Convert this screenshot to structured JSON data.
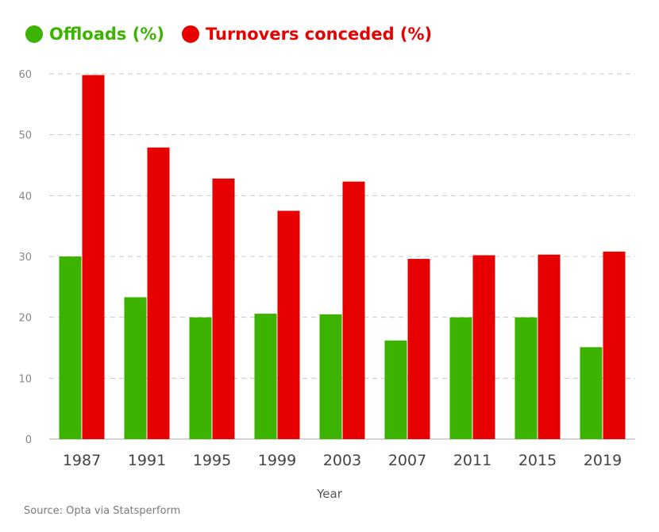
{
  "legend": {
    "offloads_label": "Offloads (%)",
    "turnovers_label": "Turnovers conceded (%)"
  },
  "source": "Source: Opta via Statsperform",
  "colors": {
    "offloads": "#3cb300",
    "turnovers": "#e60000",
    "grid": "#c8c8c8",
    "axis_text": "#888888",
    "category_text": "#444444"
  },
  "chart_data": {
    "type": "bar",
    "title": "",
    "xlabel": "Year",
    "ylabel": "",
    "ylim": [
      0,
      60
    ],
    "yticks": [
      0,
      10,
      20,
      30,
      40,
      50,
      60
    ],
    "grid": true,
    "legend_position": "top-left",
    "categories": [
      "1987",
      "1991",
      "1995",
      "1999",
      "2003",
      "2007",
      "2011",
      "2015",
      "2019"
    ],
    "series": [
      {
        "name": "Offloads (%)",
        "values": [
          30,
          23.3,
          20,
          20.6,
          20.5,
          16.2,
          20,
          20,
          15.1
        ]
      },
      {
        "name": "Turnovers conceded (%)",
        "values": [
          59.8,
          47.9,
          42.8,
          37.5,
          42.3,
          29.6,
          30.2,
          30.3,
          30.8
        ]
      }
    ]
  }
}
